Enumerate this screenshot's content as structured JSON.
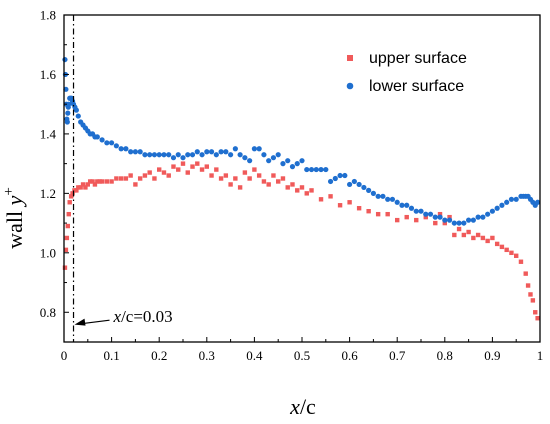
{
  "chart_data": {
    "type": "scatter",
    "xlabel_var": "x",
    "xlabel_rest": "/c",
    "ylabel_base": "wall ",
    "ylabel_var": "y",
    "ylabel_sup": "+",
    "xlim": [
      0,
      1
    ],
    "ylim": [
      0.7,
      1.8
    ],
    "xticks": [
      "0",
      "0.1",
      "0.2",
      "0.3",
      "0.4",
      "0.5",
      "0.6",
      "0.7",
      "0.8",
      "0.9",
      "1"
    ],
    "xtick_values": [
      0,
      0.1,
      0.2,
      0.3,
      0.4,
      0.5,
      0.6,
      0.7,
      0.8,
      0.9,
      1.0
    ],
    "yticks": [
      "0.8",
      "1.0",
      "1.2",
      "1.4",
      "1.6",
      "1.8"
    ],
    "ytick_values": [
      0.8,
      1.0,
      1.2,
      1.4,
      1.6,
      1.8
    ],
    "grid": false,
    "legend_position": "top-right",
    "annotation": {
      "text_var": "x",
      "text_rest": "/c=0.03",
      "line_x": 0.02,
      "arrow_y": 0.76
    },
    "series": [
      {
        "name": "upper surface",
        "marker": "square",
        "color": "#f05a5a",
        "points": [
          [
            0.002,
            0.95
          ],
          [
            0.004,
            1.01
          ],
          [
            0.006,
            1.05
          ],
          [
            0.008,
            1.09
          ],
          [
            0.01,
            1.13
          ],
          [
            0.012,
            1.17
          ],
          [
            0.015,
            1.19
          ],
          [
            0.018,
            1.2
          ],
          [
            0.022,
            1.21
          ],
          [
            0.026,
            1.21
          ],
          [
            0.03,
            1.22
          ],
          [
            0.035,
            1.22
          ],
          [
            0.04,
            1.23
          ],
          [
            0.045,
            1.22
          ],
          [
            0.05,
            1.23
          ],
          [
            0.055,
            1.24
          ],
          [
            0.06,
            1.24
          ],
          [
            0.065,
            1.23
          ],
          [
            0.07,
            1.24
          ],
          [
            0.075,
            1.24
          ],
          [
            0.08,
            1.24
          ],
          [
            0.09,
            1.24
          ],
          [
            0.1,
            1.24
          ],
          [
            0.11,
            1.25
          ],
          [
            0.12,
            1.25
          ],
          [
            0.13,
            1.25
          ],
          [
            0.14,
            1.26
          ],
          [
            0.15,
            1.23
          ],
          [
            0.16,
            1.25
          ],
          [
            0.17,
            1.26
          ],
          [
            0.18,
            1.27
          ],
          [
            0.19,
            1.25
          ],
          [
            0.2,
            1.28
          ],
          [
            0.21,
            1.27
          ],
          [
            0.22,
            1.26
          ],
          [
            0.23,
            1.29
          ],
          [
            0.24,
            1.28
          ],
          [
            0.25,
            1.3
          ],
          [
            0.26,
            1.27
          ],
          [
            0.27,
            1.29
          ],
          [
            0.28,
            1.3
          ],
          [
            0.29,
            1.28
          ],
          [
            0.3,
            1.29
          ],
          [
            0.31,
            1.26
          ],
          [
            0.32,
            1.28
          ],
          [
            0.33,
            1.25
          ],
          [
            0.34,
            1.26
          ],
          [
            0.35,
            1.23
          ],
          [
            0.36,
            1.25
          ],
          [
            0.37,
            1.22
          ],
          [
            0.38,
            1.27
          ],
          [
            0.39,
            1.25
          ],
          [
            0.4,
            1.28
          ],
          [
            0.41,
            1.26
          ],
          [
            0.42,
            1.24
          ],
          [
            0.43,
            1.23
          ],
          [
            0.44,
            1.26
          ],
          [
            0.45,
            1.24
          ],
          [
            0.46,
            1.25
          ],
          [
            0.47,
            1.22
          ],
          [
            0.48,
            1.23
          ],
          [
            0.49,
            1.21
          ],
          [
            0.5,
            1.22
          ],
          [
            0.51,
            1.2
          ],
          [
            0.52,
            1.21
          ],
          [
            0.54,
            1.18
          ],
          [
            0.56,
            1.19
          ],
          [
            0.58,
            1.16
          ],
          [
            0.6,
            1.17
          ],
          [
            0.62,
            1.15
          ],
          [
            0.64,
            1.14
          ],
          [
            0.66,
            1.13
          ],
          [
            0.68,
            1.13
          ],
          [
            0.7,
            1.11
          ],
          [
            0.72,
            1.12
          ],
          [
            0.74,
            1.11
          ],
          [
            0.76,
            1.12
          ],
          [
            0.78,
            1.1
          ],
          [
            0.79,
            1.13
          ],
          [
            0.8,
            1.1
          ],
          [
            0.81,
            1.12
          ],
          [
            0.82,
            1.06
          ],
          [
            0.83,
            1.08
          ],
          [
            0.84,
            1.06
          ],
          [
            0.85,
            1.07
          ],
          [
            0.86,
            1.05
          ],
          [
            0.87,
            1.06
          ],
          [
            0.88,
            1.05
          ],
          [
            0.89,
            1.04
          ],
          [
            0.9,
            1.05
          ],
          [
            0.91,
            1.03
          ],
          [
            0.92,
            1.02
          ],
          [
            0.93,
            1.01
          ],
          [
            0.94,
            1.0
          ],
          [
            0.95,
            0.99
          ],
          [
            0.96,
            0.97
          ],
          [
            0.97,
            0.93
          ],
          [
            0.975,
            0.89
          ],
          [
            0.98,
            0.86
          ],
          [
            0.985,
            0.84
          ],
          [
            0.99,
            0.8
          ],
          [
            0.995,
            0.78
          ]
        ]
      },
      {
        "name": "lower surface",
        "marker": "circle",
        "color": "#1f6fcf",
        "points": [
          [
            0.002,
            1.65
          ],
          [
            0.003,
            1.6
          ],
          [
            0.004,
            1.55
          ],
          [
            0.005,
            1.5
          ],
          [
            0.006,
            1.45
          ],
          [
            0.007,
            1.44
          ],
          [
            0.008,
            1.47
          ],
          [
            0.009,
            1.49
          ],
          [
            0.01,
            1.5
          ],
          [
            0.012,
            1.52
          ],
          [
            0.014,
            1.52
          ],
          [
            0.016,
            1.52
          ],
          [
            0.018,
            1.51
          ],
          [
            0.02,
            1.5
          ],
          [
            0.023,
            1.49
          ],
          [
            0.026,
            1.48
          ],
          [
            0.03,
            1.46
          ],
          [
            0.035,
            1.44
          ],
          [
            0.04,
            1.43
          ],
          [
            0.045,
            1.42
          ],
          [
            0.05,
            1.41
          ],
          [
            0.055,
            1.4
          ],
          [
            0.06,
            1.4
          ],
          [
            0.065,
            1.39
          ],
          [
            0.07,
            1.39
          ],
          [
            0.08,
            1.38
          ],
          [
            0.09,
            1.37
          ],
          [
            0.1,
            1.37
          ],
          [
            0.11,
            1.36
          ],
          [
            0.12,
            1.35
          ],
          [
            0.13,
            1.35
          ],
          [
            0.14,
            1.34
          ],
          [
            0.15,
            1.34
          ],
          [
            0.16,
            1.34
          ],
          [
            0.17,
            1.33
          ],
          [
            0.18,
            1.33
          ],
          [
            0.19,
            1.33
          ],
          [
            0.2,
            1.33
          ],
          [
            0.21,
            1.33
          ],
          [
            0.22,
            1.33
          ],
          [
            0.23,
            1.32
          ],
          [
            0.24,
            1.33
          ],
          [
            0.25,
            1.32
          ],
          [
            0.26,
            1.33
          ],
          [
            0.27,
            1.33
          ],
          [
            0.28,
            1.34
          ],
          [
            0.29,
            1.33
          ],
          [
            0.3,
            1.34
          ],
          [
            0.31,
            1.34
          ],
          [
            0.32,
            1.33
          ],
          [
            0.33,
            1.34
          ],
          [
            0.34,
            1.34
          ],
          [
            0.35,
            1.33
          ],
          [
            0.36,
            1.35
          ],
          [
            0.37,
            1.33
          ],
          [
            0.38,
            1.32
          ],
          [
            0.39,
            1.31
          ],
          [
            0.4,
            1.35
          ],
          [
            0.41,
            1.35
          ],
          [
            0.42,
            1.33
          ],
          [
            0.43,
            1.31
          ],
          [
            0.44,
            1.32
          ],
          [
            0.45,
            1.33
          ],
          [
            0.46,
            1.3
          ],
          [
            0.47,
            1.31
          ],
          [
            0.48,
            1.29
          ],
          [
            0.49,
            1.3
          ],
          [
            0.5,
            1.31
          ],
          [
            0.51,
            1.28
          ],
          [
            0.52,
            1.28
          ],
          [
            0.53,
            1.28
          ],
          [
            0.54,
            1.28
          ],
          [
            0.55,
            1.28
          ],
          [
            0.56,
            1.24
          ],
          [
            0.57,
            1.25
          ],
          [
            0.58,
            1.26
          ],
          [
            0.59,
            1.26
          ],
          [
            0.6,
            1.23
          ],
          [
            0.61,
            1.24
          ],
          [
            0.62,
            1.23
          ],
          [
            0.63,
            1.22
          ],
          [
            0.64,
            1.21
          ],
          [
            0.65,
            1.2
          ],
          [
            0.66,
            1.19
          ],
          [
            0.67,
            1.19
          ],
          [
            0.68,
            1.18
          ],
          [
            0.69,
            1.18
          ],
          [
            0.7,
            1.17
          ],
          [
            0.71,
            1.16
          ],
          [
            0.72,
            1.16
          ],
          [
            0.73,
            1.15
          ],
          [
            0.74,
            1.14
          ],
          [
            0.75,
            1.14
          ],
          [
            0.76,
            1.13
          ],
          [
            0.77,
            1.13
          ],
          [
            0.78,
            1.12
          ],
          [
            0.79,
            1.12
          ],
          [
            0.8,
            1.11
          ],
          [
            0.81,
            1.11
          ],
          [
            0.82,
            1.1
          ],
          [
            0.83,
            1.1
          ],
          [
            0.84,
            1.1
          ],
          [
            0.85,
            1.11
          ],
          [
            0.86,
            1.11
          ],
          [
            0.87,
            1.12
          ],
          [
            0.88,
            1.12
          ],
          [
            0.89,
            1.13
          ],
          [
            0.9,
            1.14
          ],
          [
            0.91,
            1.15
          ],
          [
            0.92,
            1.16
          ],
          [
            0.93,
            1.17
          ],
          [
            0.94,
            1.18
          ],
          [
            0.95,
            1.18
          ],
          [
            0.96,
            1.19
          ],
          [
            0.965,
            1.19
          ],
          [
            0.97,
            1.19
          ],
          [
            0.975,
            1.19
          ],
          [
            0.98,
            1.18
          ],
          [
            0.985,
            1.17
          ],
          [
            0.99,
            1.16
          ],
          [
            0.995,
            1.17
          ]
        ]
      }
    ]
  }
}
